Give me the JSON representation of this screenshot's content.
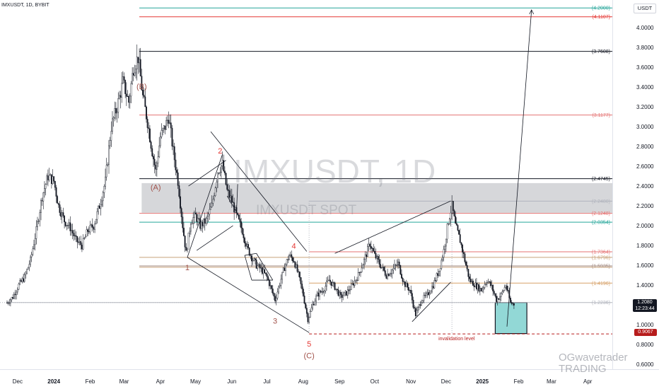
{
  "header": {
    "symbol_line": "IMXUSDT, 1D, BYBIT"
  },
  "currency_unit": "USDT",
  "watermark": {
    "main": "IMXUSDT, 1D",
    "sub": "IMXUSDT SPOT"
  },
  "brand": {
    "line1": "OGwavetrader",
    "line2": "TRADING"
  },
  "price_box": {
    "value": "1.2080",
    "countdown": "12:23:44"
  },
  "invalidation_box": {
    "value": "0.9067"
  },
  "chart_data": {
    "type": "candlestick",
    "title": "",
    "y_ticks": [
      "0.6000",
      "0.8000",
      "1.0000",
      "1.2000",
      "1.4000",
      "1.6000",
      "1.8000",
      "2.0000",
      "2.2000",
      "2.4000",
      "2.6000",
      "2.8000",
      "3.0000",
      "3.2000",
      "3.4000",
      "3.6000",
      "3.8000",
      "4.0000"
    ],
    "ylim": [
      0.55,
      4.28
    ],
    "x_ticks": [
      {
        "label": "Dec",
        "x": "2023-12-01"
      },
      {
        "label": "2024",
        "x": "2024-01-01",
        "bold": true
      },
      {
        "label": "Feb",
        "x": "2024-02-01"
      },
      {
        "label": "Mar",
        "x": "2024-03-01"
      },
      {
        "label": "Apr",
        "x": "2024-04-01"
      },
      {
        "label": "May",
        "x": "2024-05-01"
      },
      {
        "label": "Jun",
        "x": "2024-06-01"
      },
      {
        "label": "Jul",
        "x": "2024-07-01"
      },
      {
        "label": "Aug",
        "x": "2024-08-01"
      },
      {
        "label": "Sep",
        "x": "2024-09-01"
      },
      {
        "label": "Oct",
        "x": "2024-10-01"
      },
      {
        "label": "Nov",
        "x": "2024-11-01"
      },
      {
        "label": "Dec",
        "x": "2024-12-01"
      },
      {
        "label": "2025",
        "x": "2025-01-01",
        "bold": true
      },
      {
        "label": "Feb",
        "x": "2025-02-01"
      },
      {
        "label": "Mar",
        "x": "2025-03-01"
      },
      {
        "label": "Apr",
        "x": "2025-04-01"
      }
    ],
    "price_path": [
      [
        "2023-11-22",
        1.22
      ],
      [
        "2023-11-27",
        1.28
      ],
      [
        "2023-12-02",
        1.4
      ],
      [
        "2023-12-07",
        1.48
      ],
      [
        "2023-12-12",
        1.65
      ],
      [
        "2023-12-17",
        1.95
      ],
      [
        "2023-12-22",
        2.3
      ],
      [
        "2023-12-27",
        2.5
      ],
      [
        "2024-01-01",
        2.45
      ],
      [
        "2024-01-05",
        2.2
      ],
      [
        "2024-01-10",
        2.05
      ],
      [
        "2024-01-15",
        1.98
      ],
      [
        "2024-01-20",
        1.85
      ],
      [
        "2024-01-25",
        1.8
      ],
      [
        "2024-01-30",
        1.95
      ],
      [
        "2024-02-04",
        2.0
      ],
      [
        "2024-02-09",
        2.2
      ],
      [
        "2024-02-14",
        2.45
      ],
      [
        "2024-02-19",
        3.0
      ],
      [
        "2024-02-24",
        3.2
      ],
      [
        "2024-02-29",
        3.45
      ],
      [
        "2024-03-05",
        3.25
      ],
      [
        "2024-03-09",
        3.6
      ],
      [
        "2024-03-13",
        3.7
      ],
      [
        "2024-03-17",
        3.3
      ],
      [
        "2024-03-21",
        3.05
      ],
      [
        "2024-03-25",
        2.75
      ],
      [
        "2024-03-28",
        2.55
      ],
      [
        "2024-04-01",
        2.9
      ],
      [
        "2024-04-05",
        3.0
      ],
      [
        "2024-04-08",
        3.1
      ],
      [
        "2024-04-12",
        2.75
      ],
      [
        "2024-04-16",
        2.45
      ],
      [
        "2024-04-20",
        2.0
      ],
      [
        "2024-04-23",
        1.72
      ],
      [
        "2024-04-27",
        2.05
      ],
      [
        "2024-05-01",
        2.1
      ],
      [
        "2024-05-05",
        2.0
      ],
      [
        "2024-05-10",
        2.05
      ],
      [
        "2024-05-15",
        2.2
      ],
      [
        "2024-05-20",
        2.55
      ],
      [
        "2024-05-24",
        2.62
      ],
      [
        "2024-05-28",
        2.35
      ],
      [
        "2024-06-01",
        2.25
      ],
      [
        "2024-06-05",
        2.1
      ],
      [
        "2024-06-10",
        1.95
      ],
      [
        "2024-06-14",
        1.78
      ],
      [
        "2024-06-18",
        1.68
      ],
      [
        "2024-06-22",
        1.6
      ],
      [
        "2024-06-26",
        1.56
      ],
      [
        "2024-07-01",
        1.48
      ],
      [
        "2024-07-05",
        1.35
      ],
      [
        "2024-07-08",
        1.25
      ],
      [
        "2024-07-12",
        1.42
      ],
      [
        "2024-07-16",
        1.58
      ],
      [
        "2024-07-20",
        1.7
      ],
      [
        "2024-07-24",
        1.65
      ],
      [
        "2024-07-28",
        1.5
      ],
      [
        "2024-08-01",
        1.3
      ],
      [
        "2024-08-05",
        1.05
      ],
      [
        "2024-08-09",
        1.2
      ],
      [
        "2024-08-13",
        1.3
      ],
      [
        "2024-08-18",
        1.35
      ],
      [
        "2024-08-23",
        1.45
      ],
      [
        "2024-08-28",
        1.38
      ],
      [
        "2024-09-02",
        1.28
      ],
      [
        "2024-09-07",
        1.32
      ],
      [
        "2024-09-12",
        1.4
      ],
      [
        "2024-09-17",
        1.5
      ],
      [
        "2024-09-22",
        1.65
      ],
      [
        "2024-09-27",
        1.82
      ],
      [
        "2024-10-01",
        1.7
      ],
      [
        "2024-10-06",
        1.6
      ],
      [
        "2024-10-11",
        1.5
      ],
      [
        "2024-10-16",
        1.55
      ],
      [
        "2024-10-21",
        1.62
      ],
      [
        "2024-10-26",
        1.42
      ],
      [
        "2024-10-31",
        1.35
      ],
      [
        "2024-11-05",
        1.1
      ],
      [
        "2024-11-10",
        1.25
      ],
      [
        "2024-11-15",
        1.3
      ],
      [
        "2024-11-20",
        1.4
      ],
      [
        "2024-11-25",
        1.55
      ],
      [
        "2024-11-29",
        1.75
      ],
      [
        "2024-12-03",
        2.05
      ],
      [
        "2024-12-06",
        2.2
      ],
      [
        "2024-12-09",
        2.0
      ],
      [
        "2024-12-13",
        1.85
      ],
      [
        "2024-12-17",
        1.65
      ],
      [
        "2024-12-21",
        1.45
      ],
      [
        "2024-12-26",
        1.4
      ],
      [
        "2024-12-31",
        1.35
      ],
      [
        "2025-01-05",
        1.45
      ],
      [
        "2025-01-09",
        1.38
      ],
      [
        "2025-01-13",
        1.25
      ],
      [
        "2025-01-17",
        1.3
      ],
      [
        "2025-01-21",
        1.4
      ],
      [
        "2025-01-25",
        1.22
      ],
      [
        "2025-01-28",
        1.208
      ]
    ],
    "horizontal_levels": [
      {
        "price": 4.2,
        "label": "(4.2000)",
        "color": "#26a69a",
        "from": "2024-03-14"
      },
      {
        "price": 4.1107,
        "label": "(4.1107)",
        "color": "#e53935",
        "from": "2024-03-14"
      },
      {
        "price": 3.7608,
        "label": "(3.7608)",
        "color": "#131722",
        "from": "2024-03-14"
      },
      {
        "price": 3.1177,
        "label": "(3.1177)",
        "color": "#e57373",
        "from": "2024-03-14"
      },
      {
        "price": 2.4745,
        "label": "(2.4745)",
        "color": "#131722",
        "from": "2024-03-14"
      },
      {
        "price": 2.248,
        "label": "(2.2480)",
        "color": "#b2b5be",
        "from": "2024-08-06"
      },
      {
        "price": 2.1248,
        "label": "(2.1248)",
        "color": "#e57373",
        "from": "2024-03-14"
      },
      {
        "price": 2.0354,
        "label": "(2.0354)",
        "color": "#26a69a",
        "from": "2024-03-14"
      },
      {
        "price": 1.7364,
        "label": "(1.7364)",
        "color": "#e57373",
        "from": "2024-08-06"
      },
      {
        "price": 1.6796,
        "label": "(1.6796)",
        "color": "#c8a27a",
        "from": "2024-03-14"
      },
      {
        "price": 1.5935,
        "label": "(1.5935)",
        "color": "#a1887f",
        "from": "2024-03-14"
      },
      {
        "price": 1.58,
        "label": "",
        "color": "#c8a27a",
        "from": "2024-03-14"
      },
      {
        "price": 1.4196,
        "label": "(1.4196)",
        "color": "#d7a26a",
        "from": "2024-08-06"
      },
      {
        "price": 1.2236,
        "label": "(1.2236)",
        "color": "#b2b5be",
        "from": "2023-11-22"
      },
      {
        "price": 0.9067,
        "label": "",
        "color": "#b71c1c",
        "from": "2024-08-06",
        "dashed": true
      }
    ],
    "gray_zone": {
      "from": "2024-03-16",
      "to": "2025-04-30",
      "low": 2.13,
      "high": 2.43
    },
    "target_box": {
      "from": "2025-01-12",
      "to": "2025-02-08",
      "low": 0.91,
      "high": 1.2236,
      "color": "#7fd1cf"
    },
    "invalidation_label": "invalidation level",
    "wave_labels": [
      {
        "text": "(B)",
        "x": "2024-03-16",
        "y": 3.38,
        "color": "#a1524a"
      },
      {
        "text": "(A)",
        "x": "2024-03-28",
        "y": 2.36,
        "color": "#a1524a"
      },
      {
        "text": "1",
        "x": "2024-04-24",
        "y": 1.55,
        "color": "#a1524a"
      },
      {
        "text": "2",
        "x": "2024-05-22",
        "y": 2.73,
        "color": "#e53935"
      },
      {
        "text": "3",
        "x": "2024-07-08",
        "y": 1.01,
        "color": "#a1524a"
      },
      {
        "text": "4",
        "x": "2024-07-24",
        "y": 1.77,
        "color": "#e53935"
      },
      {
        "text": "5",
        "x": "2024-08-06",
        "y": 0.78,
        "color": "#e53935"
      },
      {
        "text": "(C)",
        "x": "2024-08-06",
        "y": 0.66,
        "color": "#a1524a"
      }
    ]
  }
}
